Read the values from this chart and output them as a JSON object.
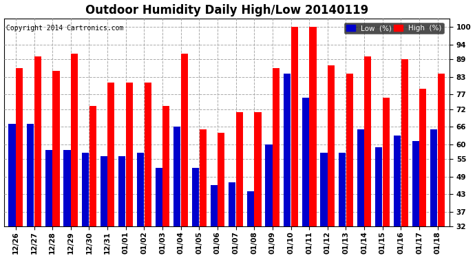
{
  "title": "Outdoor Humidity Daily High/Low 20140119",
  "copyright": "Copyright 2014 Cartronics.com",
  "categories": [
    "12/26",
    "12/27",
    "12/28",
    "12/29",
    "12/30",
    "12/31",
    "01/01",
    "01/02",
    "01/03",
    "01/04",
    "01/05",
    "01/06",
    "01/07",
    "01/08",
    "01/09",
    "01/10",
    "01/11",
    "01/12",
    "01/13",
    "01/14",
    "01/15",
    "01/16",
    "01/17",
    "01/18"
  ],
  "high_values": [
    86,
    90,
    85,
    91,
    73,
    81,
    81,
    81,
    73,
    91,
    65,
    64,
    71,
    71,
    86,
    100,
    100,
    87,
    84,
    90,
    76,
    89,
    79,
    84
  ],
  "low_values": [
    67,
    67,
    58,
    58,
    57,
    56,
    56,
    57,
    52,
    66,
    52,
    46,
    47,
    44,
    60,
    84,
    76,
    57,
    57,
    65,
    59,
    63,
    61,
    65
  ],
  "bar_color_high": "#ff0000",
  "bar_color_low": "#0000cc",
  "background_color": "#ffffff",
  "grid_color": "#aaaaaa",
  "yticks": [
    32,
    37,
    43,
    49,
    55,
    60,
    66,
    72,
    77,
    83,
    89,
    94,
    100
  ],
  "ymin": 32,
  "ymax": 103,
  "legend_low_label": "Low  (%)",
  "legend_high_label": "High  (%)",
  "title_fontsize": 12,
  "copyright_fontsize": 7,
  "tick_fontsize": 7.5,
  "bar_bottom": 32
}
